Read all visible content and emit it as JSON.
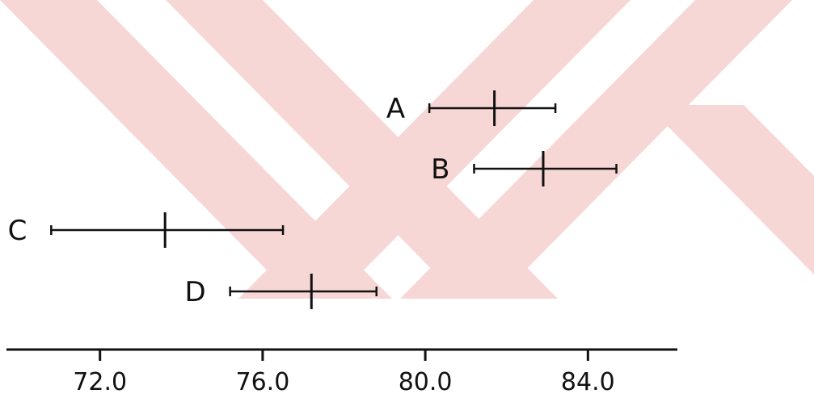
{
  "chart_data": {
    "type": "interval",
    "title": "",
    "xlabel": "",
    "ylabel": "",
    "xlim": [
      69.7,
      86.2
    ],
    "x_ticks": [
      {
        "value": 72.0,
        "label": "72.0"
      },
      {
        "value": 76.0,
        "label": "76.0"
      },
      {
        "value": 80.0,
        "label": "80.0"
      },
      {
        "value": 84.0,
        "label": "84.0"
      }
    ],
    "grid": false,
    "legend": "none",
    "series": [
      {
        "label": "A",
        "low": 80.1,
        "mean": 81.7,
        "high": 83.2
      },
      {
        "label": "B",
        "low": 81.2,
        "mean": 82.9,
        "high": 84.7
      },
      {
        "label": "C",
        "low": 70.8,
        "mean": 73.6,
        "high": 76.5
      },
      {
        "label": "D",
        "low": 75.2,
        "mean": 77.2,
        "high": 78.8
      }
    ],
    "colors": {
      "ink": "#111111",
      "watermark": "#f7d6d6"
    }
  }
}
